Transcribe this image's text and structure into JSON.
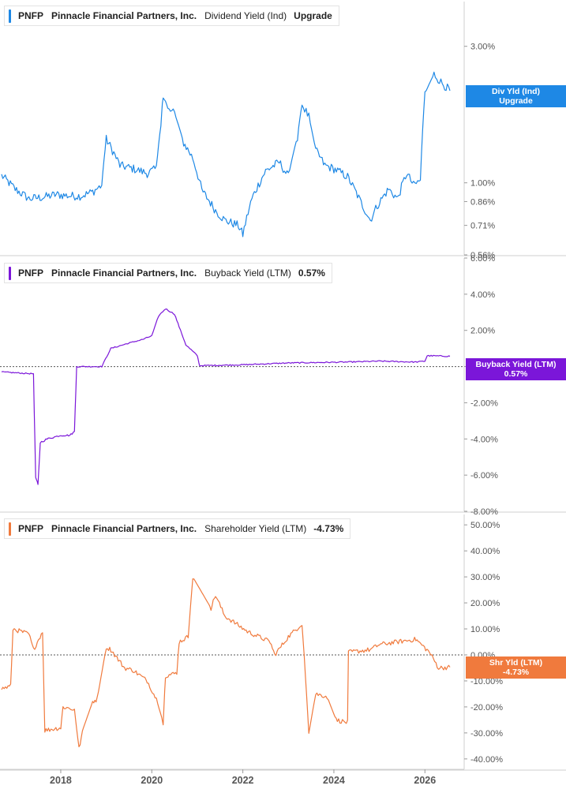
{
  "colors": {
    "dividend": "#1e88e5",
    "buyback": "#7b16d9",
    "shareholder": "#f07a3d",
    "grid": "#d9d9d9",
    "zero": "#555555"
  },
  "panels": {
    "dividend": {
      "legend": {
        "ticker": "PNFP",
        "company": "Pinnacle Financial Partners, Inc.",
        "metric": "Dividend Yield (Ind)",
        "value": "Upgrade"
      },
      "tag": {
        "line1": "Div Yld (Ind)",
        "line2": "Upgrade"
      }
    },
    "buyback": {
      "legend": {
        "ticker": "PNFP",
        "company": "Pinnacle Financial Partners, Inc.",
        "metric": "Buyback Yield (LTM)",
        "value": "0.57%"
      },
      "tag": {
        "line1": "Buyback Yield (LTM)",
        "line2": "0.57%"
      }
    },
    "shareholder": {
      "legend": {
        "ticker": "PNFP",
        "company": "Pinnacle Financial Partners, Inc.",
        "metric": "Shareholder Yield (LTM)",
        "value": "-4.73%"
      },
      "tag": {
        "line1": "Shr Yld (LTM)",
        "line2": "-4.73%"
      }
    }
  },
  "chart_data": [
    {
      "type": "line",
      "series": [
        {
          "name": "Dividend Yield (Ind)"
        }
      ],
      "y_scale": "log",
      "y_ticks": [
        3.0,
        1.0,
        0.86,
        0.71,
        0.56
      ],
      "y_tick_labels": [
        "3.00%",
        "1.00%",
        "0.86%",
        "0.71%",
        "0.56%"
      ],
      "ylim": [
        0.56,
        4.3
      ],
      "x": [
        2016.7,
        2017.0,
        2017.3,
        2017.6,
        2017.9,
        2018.2,
        2018.45,
        2018.7,
        2018.9,
        2019.0,
        2019.3,
        2019.6,
        2019.9,
        2020.1,
        2020.2,
        2020.25,
        2020.35,
        2020.5,
        2020.7,
        2020.9,
        2021.1,
        2021.4,
        2021.6,
        2021.9,
        2022.0,
        2022.2,
        2022.5,
        2022.8,
        2023.0,
        2023.2,
        2023.3,
        2023.45,
        2023.6,
        2023.8,
        2024.0,
        2024.3,
        2024.6,
        2024.8,
        2024.95,
        2025.2,
        2025.4,
        2025.6,
        2025.75,
        2025.9,
        2026.0,
        2026.2,
        2026.35,
        2026.55
      ],
      "y": [
        1.06,
        0.95,
        0.88,
        0.89,
        0.91,
        0.9,
        0.9,
        0.93,
        0.98,
        1.42,
        1.15,
        1.12,
        1.08,
        1.12,
        1.6,
        2.05,
        1.8,
        1.75,
        1.38,
        1.22,
        0.94,
        0.8,
        0.74,
        0.71,
        0.66,
        0.88,
        1.1,
        1.18,
        1.05,
        1.45,
        1.88,
        1.7,
        1.3,
        1.15,
        1.12,
        1.05,
        0.85,
        0.74,
        0.83,
        0.95,
        0.88,
        1.08,
        0.98,
        1.02,
        2.05,
        2.4,
        2.25,
        2.1
      ],
      "x_ticks": [
        "2018",
        "2020",
        "2022",
        "2024",
        "2026"
      ]
    },
    {
      "type": "line",
      "series": [
        {
          "name": "Buyback Yield (LTM)"
        }
      ],
      "y_ticks": [
        6,
        4,
        2,
        0,
        -2,
        -4,
        -6,
        -8
      ],
      "y_tick_labels": [
        "6.00%",
        "4.00%",
        "2.00%",
        "0.00%",
        "-2.00%",
        "-4.00%",
        "-6.00%",
        "-8.00%"
      ],
      "ylim": [
        -8,
        6
      ],
      "x": [
        2016.7,
        2017.4,
        2017.45,
        2017.5,
        2017.55,
        2017.7,
        2018.0,
        2018.2,
        2018.3,
        2018.35,
        2018.9,
        2019.1,
        2019.5,
        2019.8,
        2020.0,
        2020.15,
        2020.3,
        2020.5,
        2020.6,
        2020.75,
        2021.0,
        2021.05,
        2022.0,
        2023.0,
        2024.3,
        2025.0,
        2025.8,
        2026.0,
        2026.05,
        2026.55
      ],
      "y": [
        -0.3,
        -0.4,
        -6.2,
        -6.5,
        -4.2,
        -4.0,
        -3.8,
        -3.8,
        -3.6,
        0.0,
        0.0,
        1.0,
        1.3,
        1.5,
        1.7,
        2.8,
        3.2,
        2.9,
        2.2,
        1.2,
        0.6,
        0.05,
        0.1,
        0.2,
        0.25,
        0.3,
        0.25,
        0.3,
        0.6,
        0.57
      ],
      "x_ticks": [
        "2018",
        "2020",
        "2022",
        "2024",
        "2026"
      ]
    },
    {
      "type": "line",
      "series": [
        {
          "name": "Shareholder Yield (LTM)"
        }
      ],
      "y_ticks": [
        50,
        40,
        30,
        20,
        10,
        0,
        -10,
        -20,
        -30,
        -40
      ],
      "y_tick_labels": [
        "50.00%",
        "40.00%",
        "30.00%",
        "20.00%",
        "10.00%",
        "0.00%",
        "-10.00%",
        "-20.00%",
        "-30.00%",
        "-40.00%"
      ],
      "ylim": [
        -44,
        54
      ],
      "x": [
        2016.7,
        2016.9,
        2016.95,
        2017.3,
        2017.4,
        2017.6,
        2017.65,
        2018.0,
        2018.05,
        2018.3,
        2018.4,
        2018.5,
        2018.7,
        2018.8,
        2019.0,
        2019.1,
        2019.4,
        2019.6,
        2019.9,
        2020.1,
        2020.25,
        2020.3,
        2020.55,
        2020.6,
        2020.8,
        2020.9,
        2021.3,
        2021.4,
        2021.6,
        2022.1,
        2022.6,
        2022.7,
        2023.0,
        2023.3,
        2023.35,
        2023.45,
        2023.6,
        2023.85,
        2024.05,
        2024.3,
        2024.32,
        2024.8,
        2025.0,
        2025.8,
        2026.1,
        2026.3,
        2026.55
      ],
      "y": [
        -13,
        -12,
        10,
        8,
        2,
        9,
        -29,
        -28,
        -20,
        -21,
        -36,
        -28,
        -18,
        -17,
        3,
        2,
        -5,
        -6,
        -10,
        -17,
        -26,
        -8,
        -7,
        5,
        7,
        30,
        18,
        23,
        15,
        9,
        5,
        0,
        7,
        12,
        -1,
        -30,
        -15,
        -16,
        -25,
        -26,
        1,
        2,
        4,
        6,
        1,
        -5,
        -4.73
      ],
      "x_ticks": [
        "2018",
        "2020",
        "2022",
        "2024",
        "2026"
      ]
    }
  ]
}
